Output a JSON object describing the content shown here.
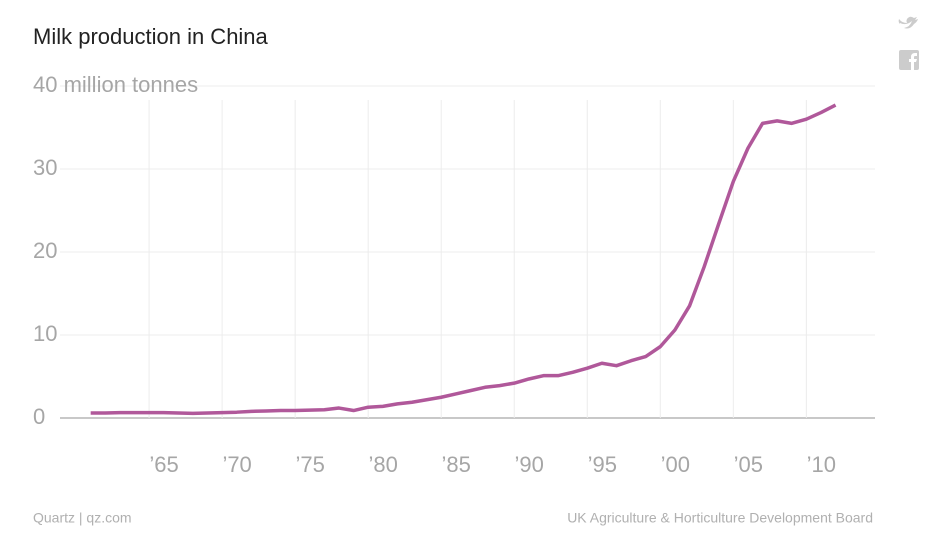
{
  "chart_data": {
    "type": "line",
    "title": "Milk production in China",
    "x": [
      1961,
      1962,
      1963,
      1964,
      1965,
      1966,
      1967,
      1968,
      1969,
      1970,
      1971,
      1972,
      1973,
      1974,
      1975,
      1976,
      1977,
      1978,
      1979,
      1980,
      1981,
      1982,
      1983,
      1984,
      1985,
      1986,
      1987,
      1988,
      1989,
      1990,
      1991,
      1992,
      1993,
      1994,
      1995,
      1996,
      1997,
      1998,
      1999,
      2000,
      2001,
      2002,
      2003,
      2004,
      2005,
      2006,
      2007,
      2008,
      2009,
      2010,
      2011,
      2012
    ],
    "series": [
      {
        "name": "Milk production",
        "color": "#b0589a",
        "values": [
          0.6,
          0.6,
          0.65,
          0.65,
          0.65,
          0.65,
          0.6,
          0.55,
          0.6,
          0.65,
          0.7,
          0.8,
          0.85,
          0.9,
          0.9,
          0.95,
          1.0,
          1.2,
          0.9,
          1.3,
          1.4,
          1.7,
          1.9,
          2.2,
          2.5,
          2.9,
          3.3,
          3.7,
          3.9,
          4.2,
          4.7,
          5.1,
          5.1,
          5.5,
          6.0,
          6.6,
          6.3,
          6.9,
          7.4,
          8.6,
          10.6,
          13.5,
          18.2,
          23.4,
          28.5,
          32.5,
          35.5,
          35.8,
          35.5,
          36.0,
          36.8,
          37.7
        ]
      }
    ],
    "xlim": [
      1958.9,
      2014.7
    ],
    "xticks": [
      {
        "value": 1965,
        "label": "’65"
      },
      {
        "value": 1970,
        "label": "’70"
      },
      {
        "value": 1975,
        "label": "’75"
      },
      {
        "value": 1980,
        "label": "’80"
      },
      {
        "value": 1985,
        "label": "’85"
      },
      {
        "value": 1990,
        "label": "’90"
      },
      {
        "value": 1995,
        "label": "’95"
      },
      {
        "value": 2000,
        "label": "’00"
      },
      {
        "value": 2005,
        "label": "’05"
      },
      {
        "value": 2010,
        "label": "’10"
      }
    ],
    "ylim": [
      0,
      40
    ],
    "yticks": [
      0,
      10,
      20,
      30,
      {
        "value": 40,
        "label": "40 million tonnes"
      }
    ],
    "grid": true,
    "credit": "Quartz | qz.com",
    "source": "UK Agriculture & Horticulture Development Board"
  }
}
